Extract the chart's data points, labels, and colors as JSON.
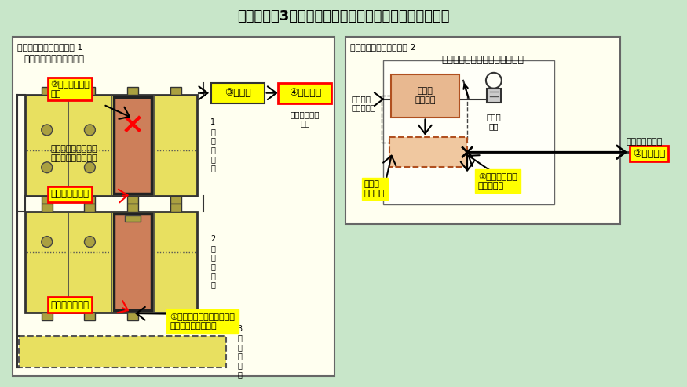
{
  "title": "伊方発電所3号機　原子炉補機シーケンス盤概略系統図",
  "bg_color": "#c8e6c9",
  "panel1_label": "原子炉補機シーケンス盤 1",
  "panel1_sublabel": "カード引抜状態確認回路",
  "panel2_label": "原子炉補機シーケンス盤 2",
  "panel2_sublabel": "パワーインターフェースカード",
  "rack1_label": "1\n段\n目\nラ\nッ\nク",
  "rack2_label": "2\n段\n目\nラ\nッ\nク",
  "rack3_label": "3\n段\n目\nラ\nッ\nク",
  "label_over_current": "②過電流により\n断線",
  "label_circuit_break": "③回路断",
  "label_signal_send_left": "④信号発信",
  "label_card_signal": "カード引抜き\n信号",
  "label_card_insert": "カード挿入で「接」\nカード引抜で「断」",
  "label_timer_card": "タイマーカード",
  "label_alarm_card": "警報監視カード",
  "label_short_circuit": "①抜差し時に一時的に電源\n回路と接触して短絡",
  "label_logic": "ロジック\nカードより",
  "label_over_current_detect": "過電流\n検出回路",
  "label_over_current_output": "過電流\n出力回路",
  "label_solenoid": "電磁弁\n電源",
  "label_transistor": "①トランジスタ\nの動作不良",
  "label_central": "（中央制御室）",
  "label_signal_send_right": "②信号発信",
  "panel1_bg": "#fffff0",
  "panel2_bg": "#fffff0",
  "yellow_bg": "#ffff00",
  "red_ec": "#ff0000",
  "rack_bg": "#e8e060",
  "card_color": "#cd7f5a",
  "inner_box_bg": "#fffff8"
}
